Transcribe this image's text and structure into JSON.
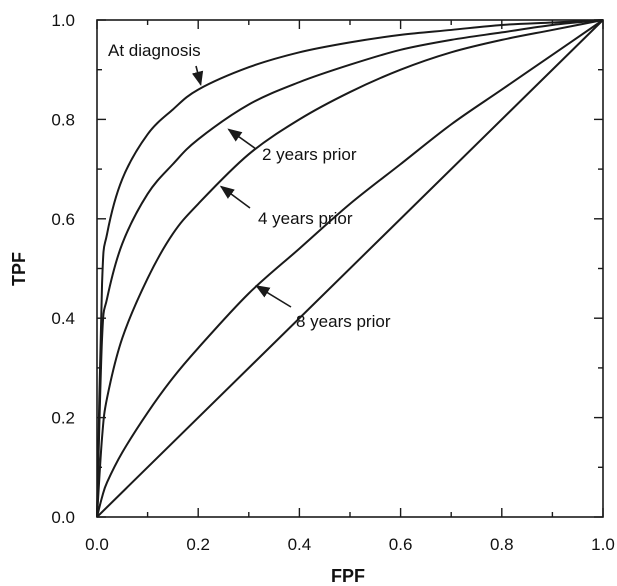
{
  "chart_data": {
    "type": "line",
    "title": "",
    "xlabel": "FPF",
    "ylabel": "TPF",
    "xlim": [
      0.0,
      1.0
    ],
    "ylim": [
      0.0,
      1.0
    ],
    "grid": false,
    "x_ticks": [
      "0.0",
      "0.2",
      "0.4",
      "0.6",
      "0.8",
      "1.0"
    ],
    "y_ticks": [
      "0.0",
      "0.2",
      "0.4",
      "0.6",
      "0.8",
      "1.0"
    ],
    "series": [
      {
        "name": "At diagnosis",
        "x": [
          0.0,
          0.01,
          0.02,
          0.05,
          0.1,
          0.15,
          0.2,
          0.3,
          0.4,
          0.5,
          0.6,
          0.7,
          0.8,
          0.9,
          1.0
        ],
        "y": [
          0.0,
          0.47,
          0.57,
          0.68,
          0.77,
          0.82,
          0.86,
          0.905,
          0.935,
          0.955,
          0.97,
          0.98,
          0.99,
          0.995,
          1.0
        ]
      },
      {
        "name": "2 years prior",
        "x": [
          0.0,
          0.01,
          0.02,
          0.05,
          0.1,
          0.15,
          0.2,
          0.3,
          0.4,
          0.5,
          0.6,
          0.7,
          0.8,
          0.9,
          1.0
        ],
        "y": [
          0.0,
          0.36,
          0.44,
          0.55,
          0.65,
          0.71,
          0.76,
          0.83,
          0.875,
          0.91,
          0.94,
          0.96,
          0.975,
          0.99,
          1.0
        ]
      },
      {
        "name": "4 years prior",
        "x": [
          0.0,
          0.01,
          0.02,
          0.05,
          0.1,
          0.15,
          0.2,
          0.3,
          0.4,
          0.5,
          0.6,
          0.7,
          0.8,
          0.9,
          1.0
        ],
        "y": [
          0.0,
          0.16,
          0.24,
          0.36,
          0.48,
          0.57,
          0.63,
          0.73,
          0.8,
          0.855,
          0.9,
          0.935,
          0.96,
          0.98,
          1.0
        ]
      },
      {
        "name": "8 years prior",
        "x": [
          0.0,
          0.01,
          0.02,
          0.05,
          0.1,
          0.15,
          0.2,
          0.3,
          0.4,
          0.5,
          0.6,
          0.7,
          0.8,
          0.9,
          1.0
        ],
        "y": [
          0.0,
          0.04,
          0.07,
          0.13,
          0.21,
          0.28,
          0.34,
          0.45,
          0.54,
          0.63,
          0.71,
          0.79,
          0.86,
          0.93,
          1.0
        ]
      },
      {
        "name": "",
        "x": [
          0.0,
          1.0
        ],
        "y": [
          0.0,
          1.0
        ]
      }
    ],
    "annotations": [
      {
        "text": "At diagnosis",
        "arrow_to": [
          0.205,
          0.87
        ]
      },
      {
        "text": "2 years prior",
        "arrow_to": [
          0.26,
          0.78
        ]
      },
      {
        "text": "4 years prior",
        "arrow_to": [
          0.245,
          0.665
        ]
      },
      {
        "text": "8 years prior",
        "arrow_to": [
          0.315,
          0.465
        ]
      }
    ]
  }
}
